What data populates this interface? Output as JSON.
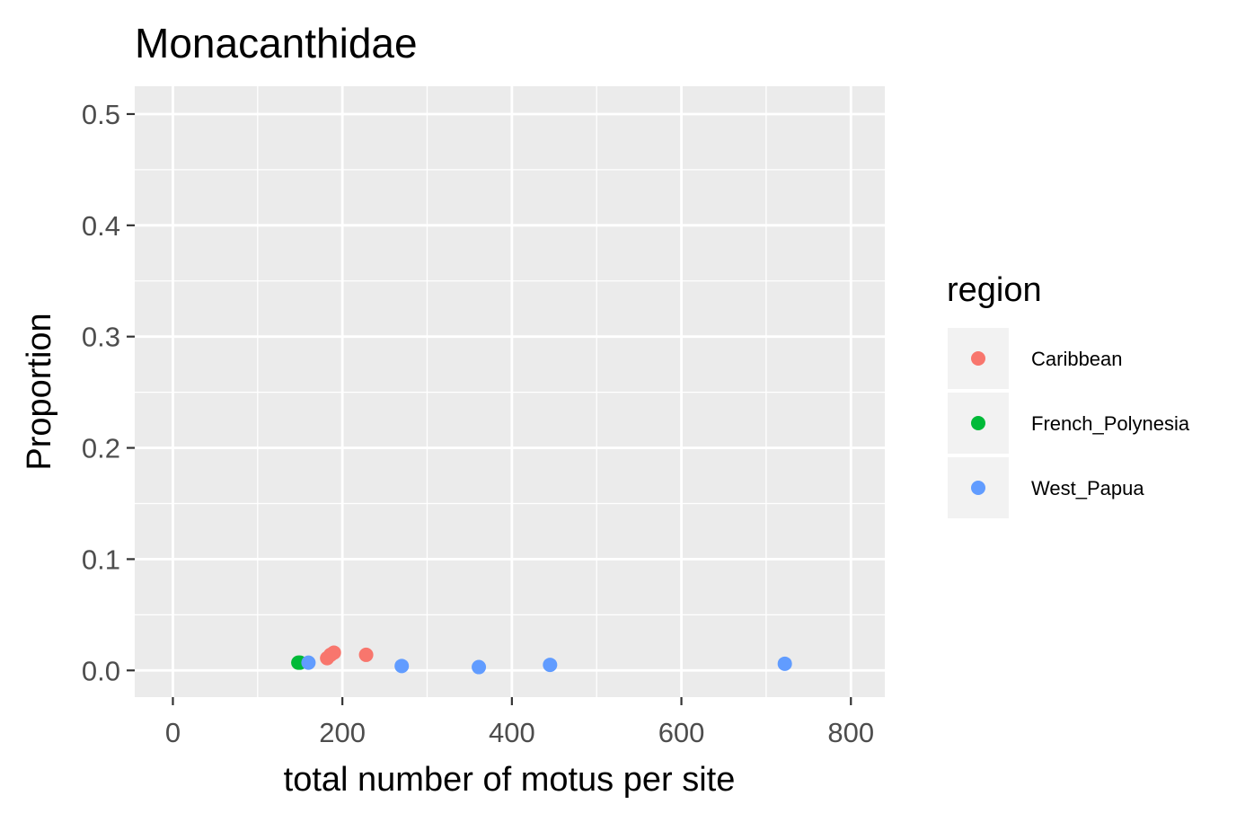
{
  "chart_data": {
    "type": "scatter",
    "title": "Monacanthidae",
    "xlabel": "total number of motus per site",
    "ylabel": "Proportion",
    "xlim": [
      -45,
      840
    ],
    "ylim": [
      -0.024,
      0.525
    ],
    "x_ticks": [
      0,
      200,
      400,
      600,
      800
    ],
    "y_ticks": [
      0.0,
      0.1,
      0.2,
      0.3,
      0.4,
      0.5
    ],
    "x_tick_labels": [
      "0",
      "200",
      "400",
      "600",
      "800"
    ],
    "y_tick_labels": [
      "0.0",
      "0.1",
      "0.2",
      "0.3",
      "0.4",
      "0.5"
    ],
    "grid": true,
    "legend": {
      "title": "region",
      "position": "right"
    },
    "series": [
      {
        "name": "Caribbean",
        "color": "#f8766d",
        "points": [
          {
            "x": 182,
            "y": 0.011
          },
          {
            "x": 186,
            "y": 0.014
          },
          {
            "x": 190,
            "y": 0.016
          },
          {
            "x": 228,
            "y": 0.014
          }
        ]
      },
      {
        "name": "French_Polynesia",
        "color": "#00ba38",
        "points": [
          {
            "x": 148,
            "y": 0.007
          },
          {
            "x": 150,
            "y": 0.007
          }
        ]
      },
      {
        "name": "West_Papua",
        "color": "#619cff",
        "points": [
          {
            "x": 160,
            "y": 0.007
          },
          {
            "x": 270,
            "y": 0.004
          },
          {
            "x": 361,
            "y": 0.003
          },
          {
            "x": 445,
            "y": 0.005
          },
          {
            "x": 722,
            "y": 0.006
          }
        ]
      }
    ]
  }
}
